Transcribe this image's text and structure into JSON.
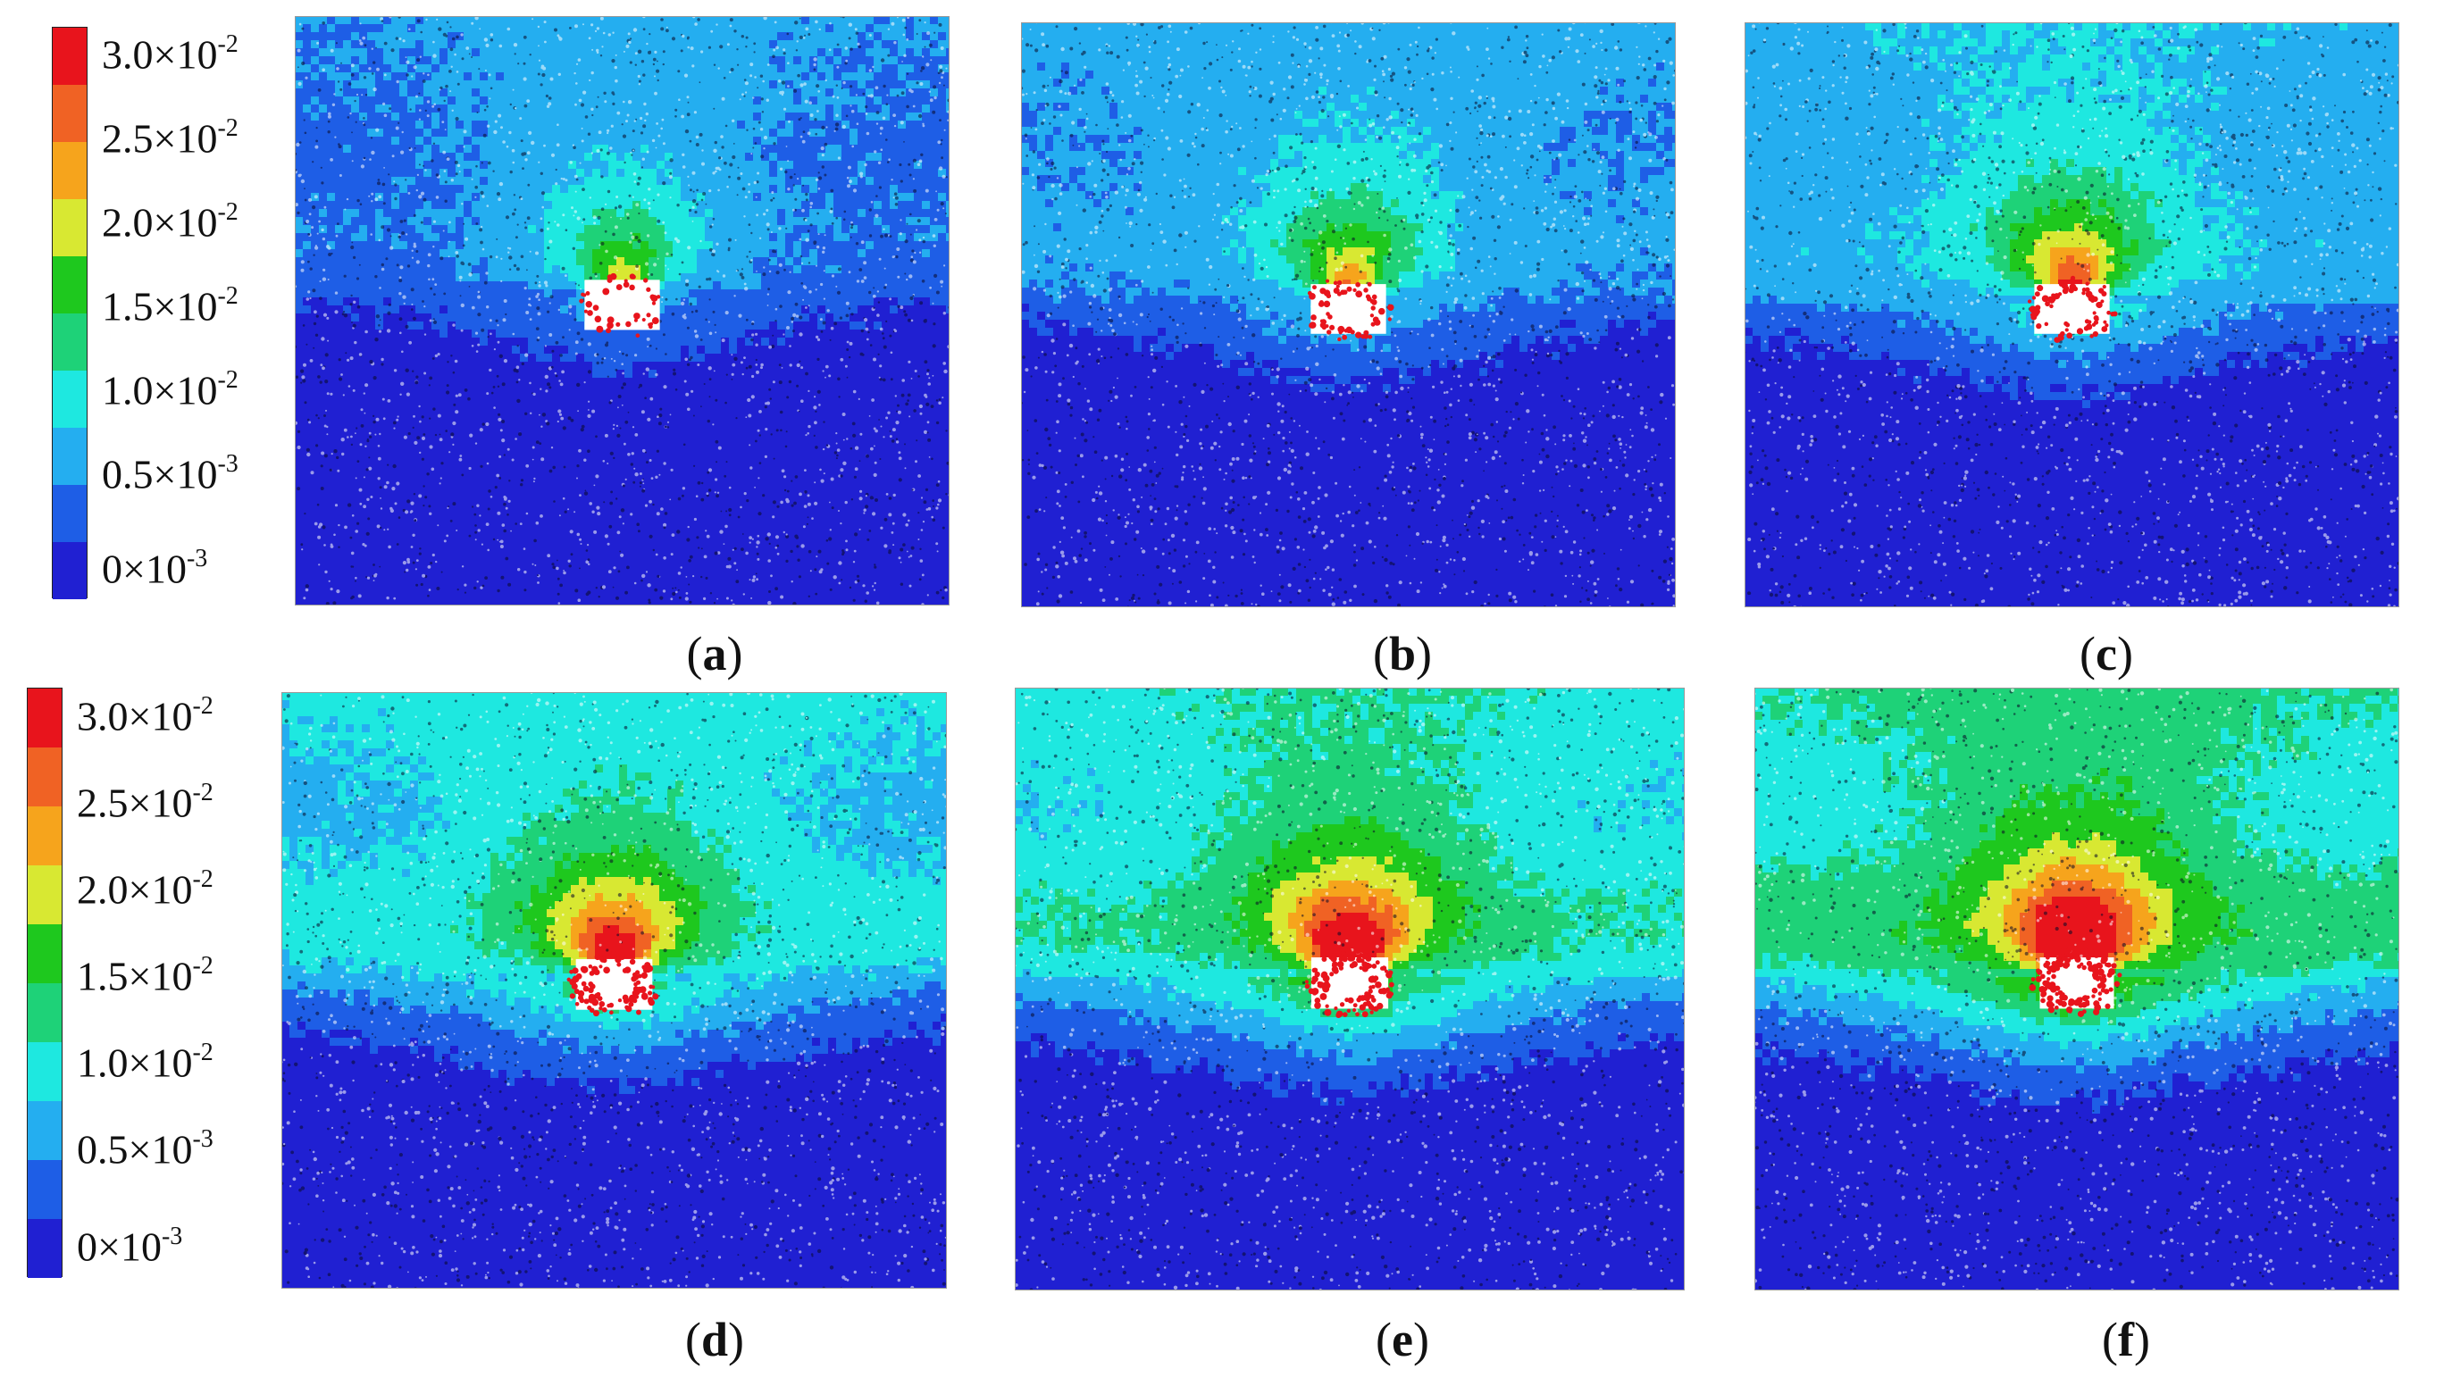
{
  "colorbar": {
    "colors": [
      "#e8141c",
      "#f06224",
      "#f6a41c",
      "#d8e832",
      "#1ec81e",
      "#1ed278",
      "#1ee8e0",
      "#24aef0",
      "#1e5ee6",
      "#2020d2"
    ],
    "labels": [
      {
        "base": "3.0×10",
        "exp": "-2"
      },
      {
        "base": "2.5×10",
        "exp": "-2"
      },
      {
        "base": "2.0×10",
        "exp": "-2"
      },
      {
        "base": "1.5×10",
        "exp": "-2"
      },
      {
        "base": "1.0×10",
        "exp": "-2"
      },
      {
        "base": "0.5×10",
        "exp": "-3"
      },
      {
        "base": "0×10",
        "exp": "-3"
      }
    ]
  },
  "panels": [
    {
      "letter": "a",
      "stage": 0
    },
    {
      "letter": "b",
      "stage": 1
    },
    {
      "letter": "c",
      "stage": 2
    },
    {
      "letter": "d",
      "stage": 3
    },
    {
      "letter": "e",
      "stage": 4
    },
    {
      "letter": "f",
      "stage": 5
    }
  ],
  "level_scale": [
    0.9,
    1.25,
    1.65,
    2.25,
    2.7,
    3.2
  ],
  "rock_texture": "particle-grain"
}
